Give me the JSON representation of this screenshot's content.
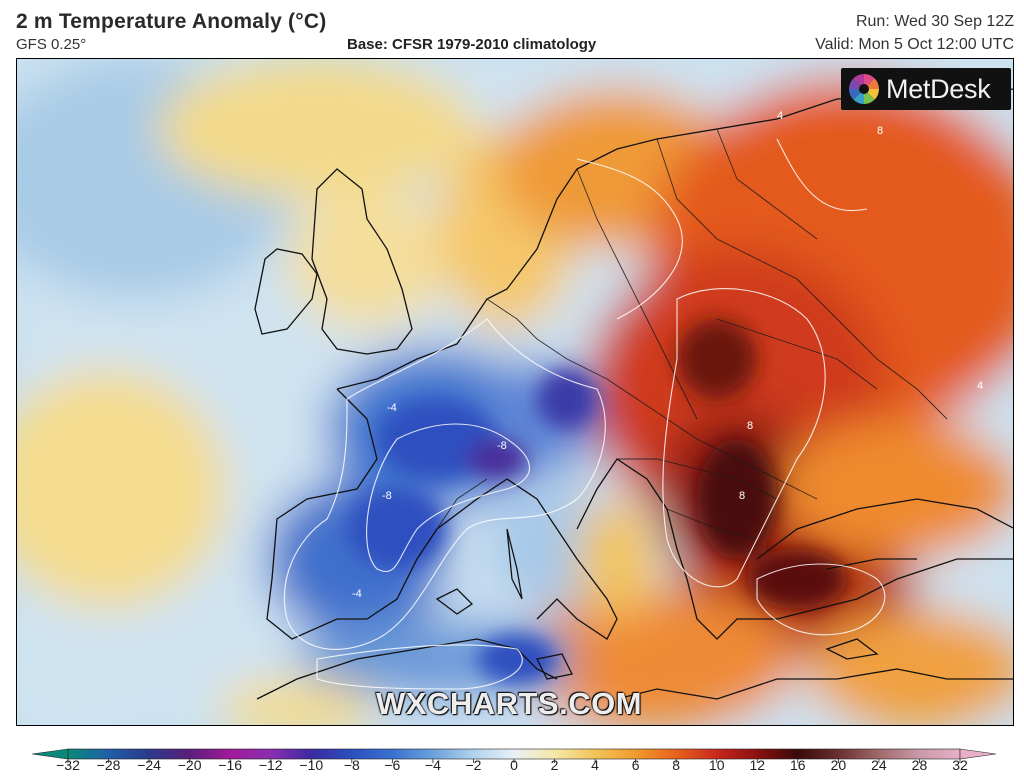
{
  "header": {
    "title": "2 m Temperature Anomaly (°C)",
    "model": "GFS 0.25°",
    "base": "Base: CFSR 1979-2010 climatology",
    "run": "Run: Wed 30 Sep 12Z",
    "valid": "Valid: Mon 5 Oct 12:00 UTC"
  },
  "logo": {
    "text": "MetDesk",
    "icon": "metdesk-logo-icon"
  },
  "watermark": "WXCHARTS.COM",
  "contour_labels": [
    {
      "text": "-4"
    },
    {
      "text": "-8"
    },
    {
      "text": "-4"
    },
    {
      "text": "-8"
    },
    {
      "text": "8"
    },
    {
      "text": "8"
    },
    {
      "text": "4"
    },
    {
      "text": "8"
    },
    {
      "text": "4"
    }
  ],
  "legend": {
    "ticks": [
      "−32",
      "−28",
      "−24",
      "−20",
      "−16",
      "−12",
      "−10",
      "−8",
      "−6",
      "−4",
      "−2",
      "0",
      "2",
      "4",
      "6",
      "8",
      "10",
      "12",
      "16",
      "20",
      "24",
      "28",
      "32"
    ],
    "colors": [
      "#0a8a7a",
      "#1f5fa8",
      "#2c3a8c",
      "#5a1f7a",
      "#a21a9a",
      "#8a2fb0",
      "#3b2aa0",
      "#2b4fc0",
      "#3a72d0",
      "#6aa0dc",
      "#b0d2ec",
      "#e8f0f6",
      "#f6e8a8",
      "#f3c45a",
      "#ef9a2e",
      "#e8621c",
      "#c8281c",
      "#8a1010",
      "#3a0a0a",
      "#6a3030",
      "#a06a6a",
      "#c89aa8",
      "#e8b0c8"
    ]
  }
}
